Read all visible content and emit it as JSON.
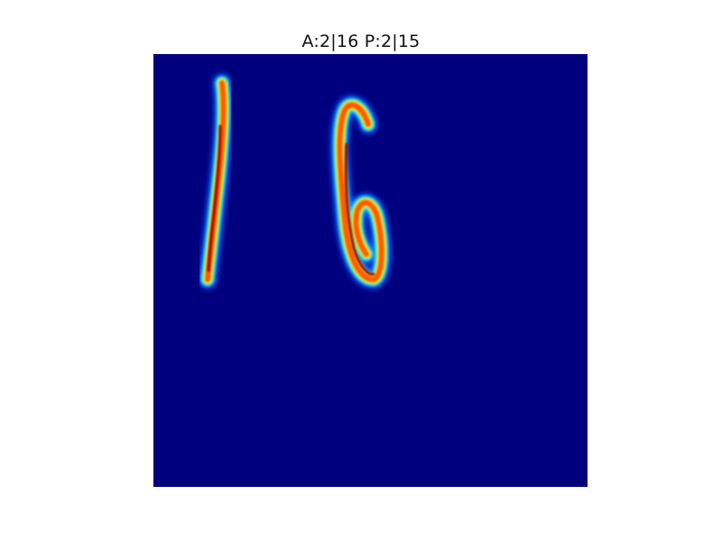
{
  "chart_data": {
    "type": "heatmap",
    "title": "A:2|16 P:2|15",
    "colormap": "jet",
    "background_color": "#00007f",
    "glyphs": [
      "1",
      "6"
    ],
    "axes_visible": false
  }
}
